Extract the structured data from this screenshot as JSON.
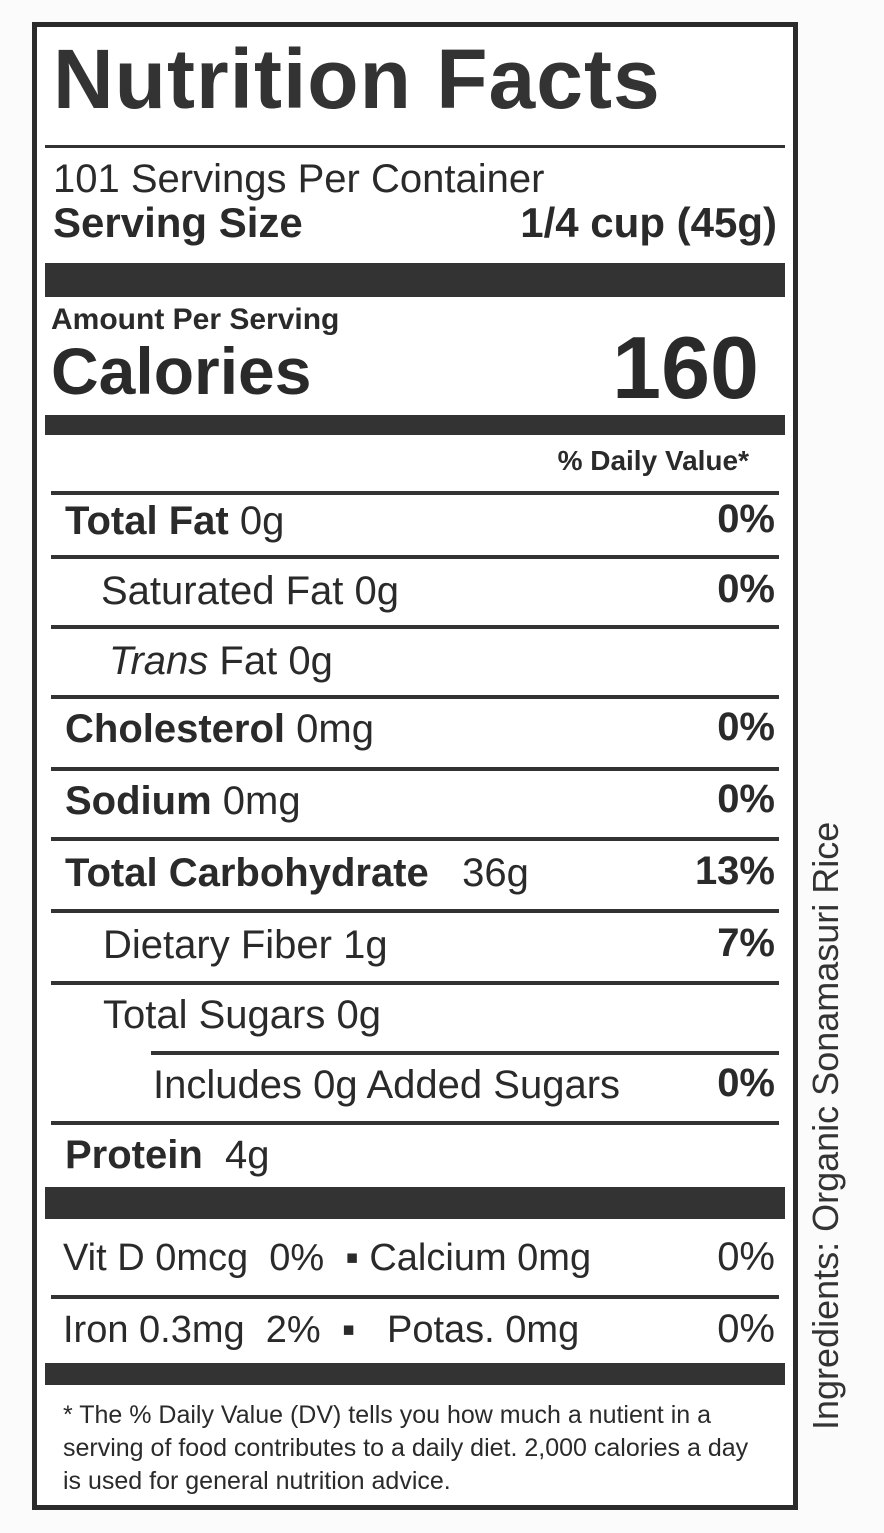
{
  "title": "Nutrition Facts",
  "servings_per_container": "101 Servings Per Container",
  "serving_size_label": "Serving Size",
  "serving_size_value": "1/4 cup (45g)",
  "amount_per_serving": "Amount Per Serving",
  "calories_label": "Calories",
  "calories_value": "160",
  "daily_value_header": "% Daily Value*",
  "nutrients": [
    {
      "name": "Total Fat",
      "amount": "0g",
      "dv": "0%"
    },
    {
      "name": "Saturated Fat",
      "amount": "0g",
      "dv": "0%"
    },
    {
      "name": "Trans",
      "name_suffix": "Fat",
      "amount": "0g",
      "dv": ""
    },
    {
      "name": "Cholesterol",
      "amount": "0mg",
      "dv": "0%"
    },
    {
      "name": "Sodium",
      "amount": "0mg",
      "dv": "0%"
    },
    {
      "name": "Total Carbohydrate",
      "amount": "36g",
      "dv": "13%"
    },
    {
      "name": "Dietary Fiber",
      "amount": "1g",
      "dv": "7%"
    },
    {
      "name": "Total Sugars",
      "amount": "0g",
      "dv": ""
    },
    {
      "name": "Includes 0g Added Sugars",
      "amount": "",
      "dv": "0%"
    },
    {
      "name": "Protein",
      "amount": "4g",
      "dv": ""
    }
  ],
  "vitamins": [
    {
      "left": "Vit D 0mcg",
      "left_dv": "0%",
      "right": "Calcium 0mg",
      "right_dv": "0%"
    },
    {
      "left": "Iron 0.3mg",
      "left_dv": "2%",
      "right": "Potas. 0mg",
      "right_dv": "0%"
    }
  ],
  "footnote": "* The % Daily Value (DV) tells you how much a nutient in a serving of food contributes to a daily diet. 2,000 calories a day is used for general nutrition advice.",
  "ingredients": "Ingredients: Organic Sonamasuri Rice"
}
